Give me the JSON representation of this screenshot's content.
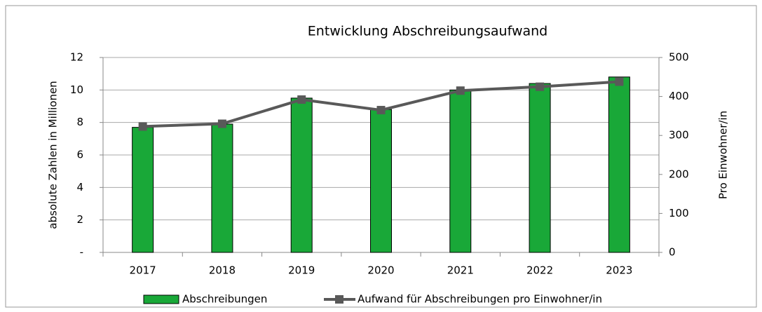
{
  "chart_data": {
    "type": "bar",
    "title": "Entwicklung Abschreibungsaufwand",
    "ylabel": "absolute Zahlen in Millionen",
    "y2label": "Pro Einwohner/in",
    "categories": [
      "2017",
      "2018",
      "2019",
      "2020",
      "2021",
      "2022",
      "2023"
    ],
    "series": [
      {
        "name": "Abschreibungen",
        "type": "bar",
        "color": "#19a838",
        "values": [
          7.7,
          7.9,
          9.5,
          8.8,
          10.0,
          10.4,
          10.8
        ]
      },
      {
        "name": "Aufwand für Abschreibungen pro Einwohner/in",
        "type": "line",
        "axis": "y2",
        "color": "#595959",
        "values": [
          323,
          330,
          392,
          365,
          415,
          425,
          438
        ]
      }
    ],
    "ylim": [
      0,
      12
    ],
    "yticks": [
      {
        "value": 0,
        "label": "-"
      },
      2,
      4,
      6,
      8,
      10,
      12
    ],
    "y2lim": [
      0,
      500
    ],
    "y2ticks": [
      0,
      100,
      200,
      300,
      400,
      500
    ],
    "grid": true,
    "legend": "bottom"
  }
}
